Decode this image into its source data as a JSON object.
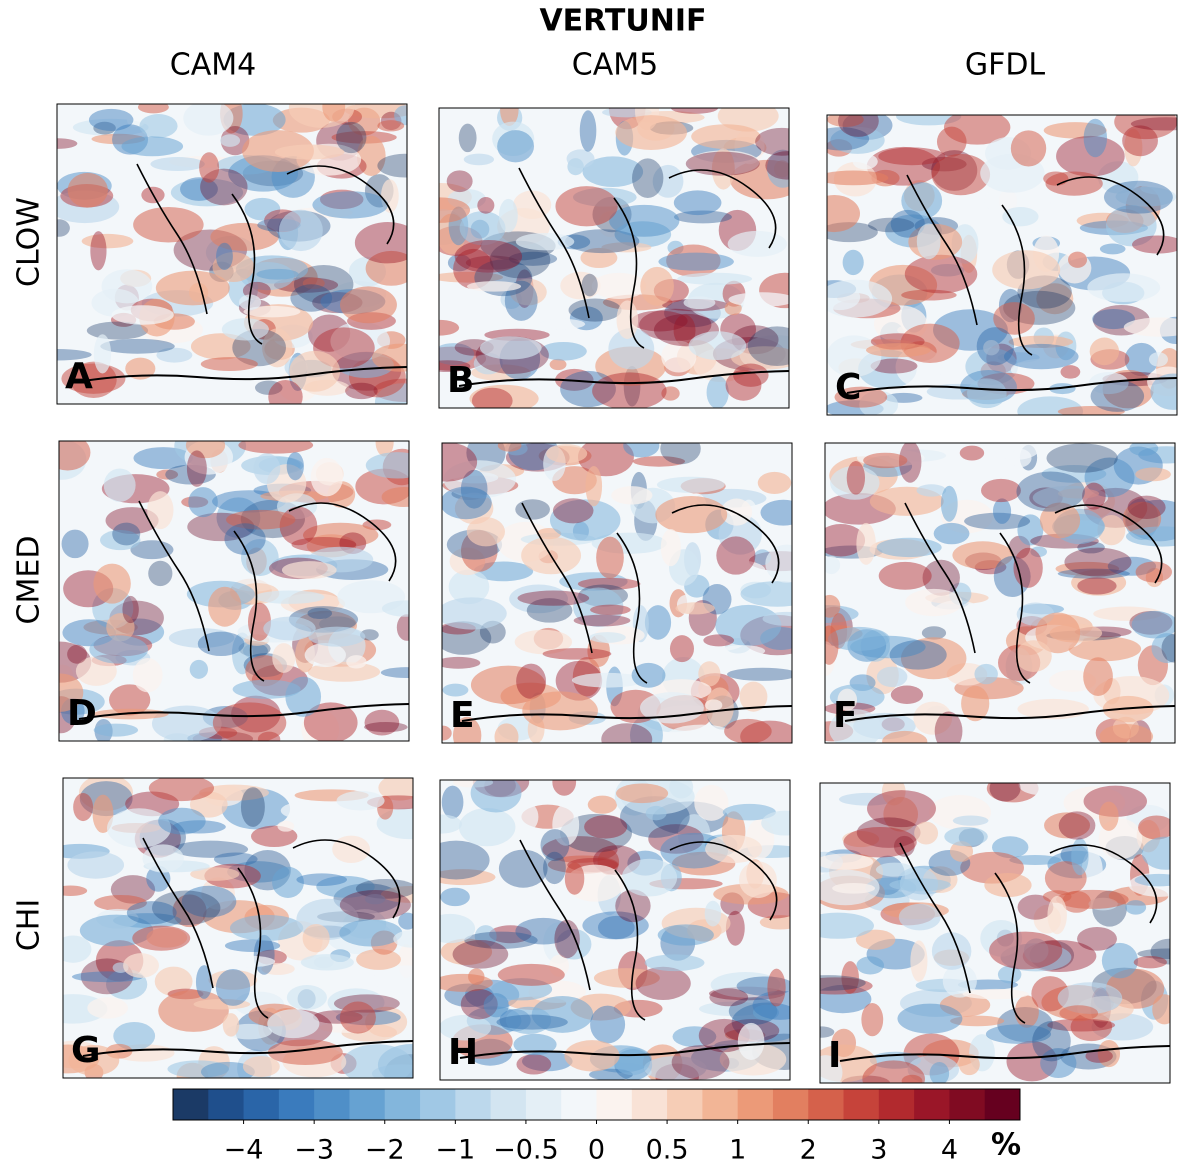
{
  "title": "VERTUNIF",
  "columns": [
    "CAM4",
    "CAM5",
    "GFDL"
  ],
  "rows": [
    "CLOW",
    "CMED",
    "CHI"
  ],
  "panels": [
    "A",
    "B",
    "C",
    "D",
    "E",
    "F",
    "G",
    "H",
    "I"
  ],
  "colorbar": {
    "colors": [
      "#1b3a66",
      "#1f4f8c",
      "#2a65a8",
      "#3a7bbd",
      "#4f8fc8",
      "#66a2d2",
      "#83b6dc",
      "#a0c8e5",
      "#bcd8ec",
      "#d3e5f1",
      "#e4eff6",
      "#f3f7fa",
      "#fbf3ef",
      "#f9e2d6",
      "#f6cdb6",
      "#f2b596",
      "#ec9a78",
      "#e27f60",
      "#d5614b",
      "#c6433a",
      "#b22a2e",
      "#9a1628",
      "#800b22",
      "#66001f"
    ],
    "ticks": [
      {
        "value": -4,
        "label": "−4"
      },
      {
        "value": -3,
        "label": "−3"
      },
      {
        "value": -2,
        "label": "−2"
      },
      {
        "value": -1,
        "label": "−1"
      },
      {
        "value": -0.5,
        "label": "−0.5"
      },
      0,
      0.5,
      1,
      2,
      3,
      4
    ],
    "unit": "%"
  }
}
